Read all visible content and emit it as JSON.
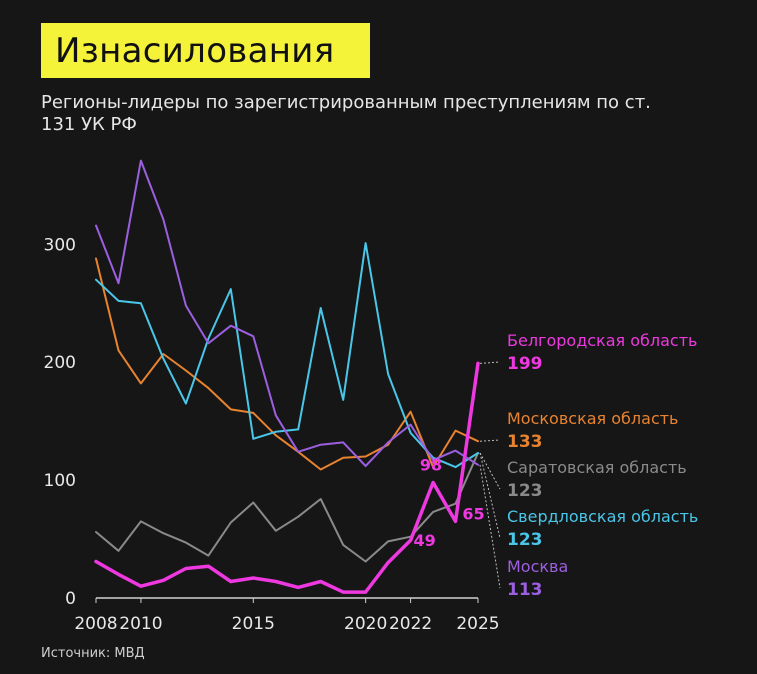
{
  "title": "Изнасилования",
  "subtitle": "Регионы-лидеры по зарегистрированным преступлениям по ст. 131 УК РФ",
  "source": "Источник: МВД",
  "colors": {
    "title_bg": "#f5f23a",
    "background": "#161616"
  },
  "chart_data": {
    "type": "line",
    "title": "Изнасилования",
    "subtitle": "Регионы-лидеры по зарегистрированным преступлениям по ст. 131 УК РФ",
    "xlabel": "",
    "ylabel": "",
    "xlim": [
      2008,
      2025
    ],
    "ylim": [
      0,
      380
    ],
    "x_ticks": [
      2008,
      2010,
      2015,
      2020,
      2022,
      2025
    ],
    "y_ticks": [
      0,
      100,
      200,
      300
    ],
    "grid": false,
    "x": [
      2008,
      2009,
      2010,
      2011,
      2012,
      2013,
      2014,
      2015,
      2016,
      2017,
      2018,
      2019,
      2020,
      2021,
      2022,
      2023,
      2024,
      2025
    ],
    "series": [
      {
        "name": "Саратовская область",
        "color": "#8a8a8a",
        "end_value_label": "123",
        "values": [
          56,
          40,
          65,
          55,
          47,
          36,
          64,
          81,
          57,
          69,
          84,
          45,
          31,
          48,
          52,
          73,
          80,
          123
        ]
      },
      {
        "name": "Московская область",
        "color": "#e8832f",
        "end_value_label": "133",
        "values": [
          288,
          210,
          182,
          207,
          193,
          178,
          160,
          157,
          138,
          124,
          109,
          119,
          120,
          130,
          158,
          111,
          142,
          133
        ]
      },
      {
        "name": "Свердловская область",
        "color": "#49c6e8",
        "end_value_label": "123",
        "values": [
          270,
          252,
          250,
          203,
          165,
          220,
          262,
          135,
          141,
          143,
          246,
          168,
          301,
          190,
          140,
          119,
          111,
          123
        ]
      },
      {
        "name": "Москва",
        "color": "#9b5fe0",
        "end_value_label": "113",
        "values": [
          316,
          267,
          371,
          321,
          248,
          216,
          231,
          222,
          155,
          124,
          130,
          132,
          112,
          132,
          147,
          117,
          125,
          113
        ]
      },
      {
        "name": "Белгородская область",
        "color": "#ee38e0",
        "end_value_label": "199",
        "values": [
          31,
          20,
          10,
          15,
          25,
          27,
          14,
          17,
          14,
          9,
          14,
          5,
          5,
          30,
          49,
          98,
          65,
          199
        ],
        "point_labels": [
          {
            "x": 2022,
            "label": "49"
          },
          {
            "x": 2023,
            "label": "98"
          },
          {
            "x": 2024,
            "label": "65"
          }
        ]
      }
    ],
    "legend": {
      "placement": "right-end-labels",
      "order": [
        "Белгородская область",
        "Московская область",
        "Саратовская область",
        "Свердловская область",
        "Москва"
      ]
    }
  }
}
